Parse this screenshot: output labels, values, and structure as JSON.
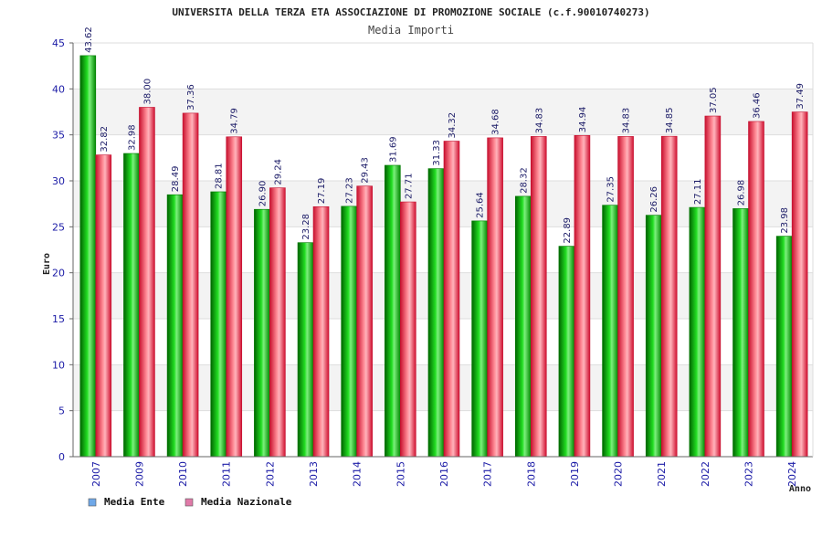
{
  "colors": {
    "ente": "#00a800",
    "nazionale": "#e8283c",
    "legend_ente": "#6fa8e8",
    "legend_nazionale": "#e07aa8",
    "band": "#f3f3f3",
    "axis_text": "#1a1aa6"
  },
  "chart_data": {
    "type": "bar",
    "title": "UNIVERSITA DELLA TERZA ETA ASSOCIAZIONE DI PROMOZIONE SOCIALE (c.f.90010740273)",
    "subtitle": "Media Importi",
    "xlabel": "Anno",
    "ylabel": "Euro",
    "ylim": [
      0,
      45
    ],
    "yticks": [
      0,
      5,
      10,
      15,
      20,
      25,
      30,
      35,
      40,
      45
    ],
    "grid": true,
    "legend_position": "bottom-left",
    "categories": [
      "2007",
      "2009",
      "2010",
      "2011",
      "2012",
      "2013",
      "2014",
      "2015",
      "2016",
      "2017",
      "2018",
      "2019",
      "2020",
      "2021",
      "2022",
      "2023",
      "2024"
    ],
    "series": [
      {
        "name": "Media Ente",
        "values": [
          43.62,
          32.98,
          28.49,
          28.81,
          26.9,
          23.28,
          27.23,
          31.69,
          31.33,
          25.64,
          28.32,
          22.89,
          27.35,
          26.26,
          27.11,
          26.98,
          23.98
        ],
        "labels": [
          "43.62",
          "32.98",
          "28.49",
          "28.81",
          "26.90",
          "23.28",
          "27.23",
          "31.69",
          "31.33",
          "25.64",
          "28.32",
          "22.89",
          "27.35",
          "26.26",
          "27.11",
          "26.98",
          "23.98"
        ]
      },
      {
        "name": "Media Nazionale",
        "values": [
          32.82,
          38.0,
          37.36,
          34.79,
          29.24,
          27.19,
          29.43,
          27.71,
          34.32,
          34.68,
          34.83,
          34.94,
          34.83,
          34.85,
          37.05,
          36.46,
          37.49
        ],
        "labels": [
          "32.82",
          "38.00",
          "37.36",
          "34.79",
          "29.24",
          "27.19",
          "29.43",
          "27.71",
          "34.32",
          "34.68",
          "34.83",
          "34.94",
          "34.83",
          "34.85",
          "37.05",
          "36.46",
          "37.49"
        ]
      }
    ]
  }
}
